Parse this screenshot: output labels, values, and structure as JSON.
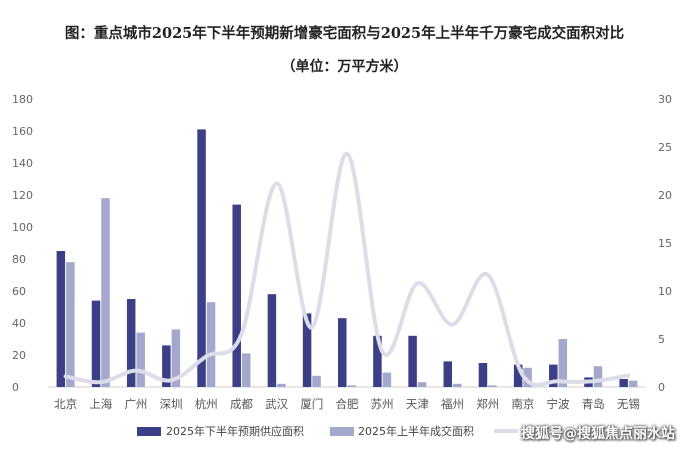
{
  "chart_data": {
    "type": "bar",
    "title": "图：重点城市2025年下半年预期新增豪宅面积与2025年上半年千万豪宅成交面积对比",
    "subtitle": "（单位：万平方米）",
    "categories": [
      "北京",
      "上海",
      "广州",
      "深圳",
      "杭州",
      "成都",
      "武汉",
      "厦门",
      "合肥",
      "苏州",
      "天津",
      "福州",
      "郑州",
      "南京",
      "宁波",
      "青岛",
      "无锡"
    ],
    "series": [
      {
        "name": "2025年下半年预期供应面积",
        "type": "bar",
        "axis": "left",
        "color": "#3a3f87",
        "values": [
          85,
          54,
          55,
          26,
          161,
          114,
          58,
          46,
          43,
          32,
          32,
          16,
          15,
          14,
          14,
          6,
          5
        ]
      },
      {
        "name": "2025年上半年成交面积",
        "type": "bar",
        "axis": "left",
        "color": "#a3a8cc",
        "values": [
          78,
          118,
          34,
          36,
          53,
          21,
          2,
          7,
          1,
          9,
          3,
          2,
          1,
          12,
          30,
          13,
          4
        ]
      },
      {
        "name": "",
        "type": "line",
        "axis": "right",
        "color": "#dcdde8",
        "values": [
          1.1,
          0.5,
          1.7,
          0.7,
          3.2,
          5.5,
          21.2,
          6.2,
          24.3,
          3.7,
          10.8,
          6.5,
          11.7,
          1.2,
          0.6,
          0.6,
          1.2
        ]
      }
    ],
    "ylim": [
      0,
      180
    ],
    "yticks": [
      0,
      20,
      40,
      60,
      80,
      100,
      120,
      140,
      160,
      180
    ],
    "y2lim": [
      0,
      30
    ],
    "y2ticks": [
      0,
      5,
      10,
      15,
      20,
      25,
      30
    ],
    "legend_position": "bottom"
  },
  "watermark": "搜狐号@搜狐焦点丽水站"
}
